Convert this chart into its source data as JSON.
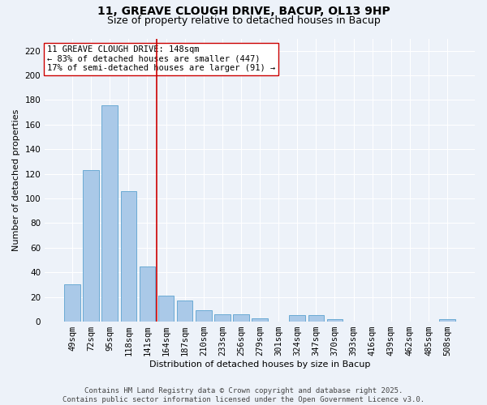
{
  "title1": "11, GREAVE CLOUGH DRIVE, BACUP, OL13 9HP",
  "title2": "Size of property relative to detached houses in Bacup",
  "xlabel": "Distribution of detached houses by size in Bacup",
  "ylabel": "Number of detached properties",
  "categories": [
    "49sqm",
    "72sqm",
    "95sqm",
    "118sqm",
    "141sqm",
    "164sqm",
    "187sqm",
    "210sqm",
    "233sqm",
    "256sqm",
    "279sqm",
    "301sqm",
    "324sqm",
    "347sqm",
    "370sqm",
    "393sqm",
    "416sqm",
    "439sqm",
    "462sqm",
    "485sqm",
    "508sqm"
  ],
  "values": [
    30,
    123,
    176,
    106,
    45,
    21,
    17,
    9,
    6,
    6,
    3,
    0,
    5,
    5,
    2,
    0,
    0,
    0,
    0,
    0,
    2
  ],
  "bar_color": "#aac9e8",
  "bar_edge_color": "#6aaad4",
  "bg_color": "#edf2f9",
  "grid_color": "#ffffff",
  "vline_x": 4.5,
  "vline_color": "#cc0000",
  "annotation_text": "11 GREAVE CLOUGH DRIVE: 148sqm\n← 83% of detached houses are smaller (447)\n17% of semi-detached houses are larger (91) →",
  "annotation_box_color": "#ffffff",
  "annotation_box_edge": "#cc0000",
  "ylim": [
    0,
    230
  ],
  "yticks": [
    0,
    20,
    40,
    60,
    80,
    100,
    120,
    140,
    160,
    180,
    200,
    220
  ],
  "footer_text": "Contains HM Land Registry data © Crown copyright and database right 2025.\nContains public sector information licensed under the Open Government Licence v3.0.",
  "title_fontsize": 10,
  "subtitle_fontsize": 9,
  "axis_label_fontsize": 8,
  "tick_fontsize": 7.5,
  "annotation_fontsize": 7.5,
  "footer_fontsize": 6.5
}
